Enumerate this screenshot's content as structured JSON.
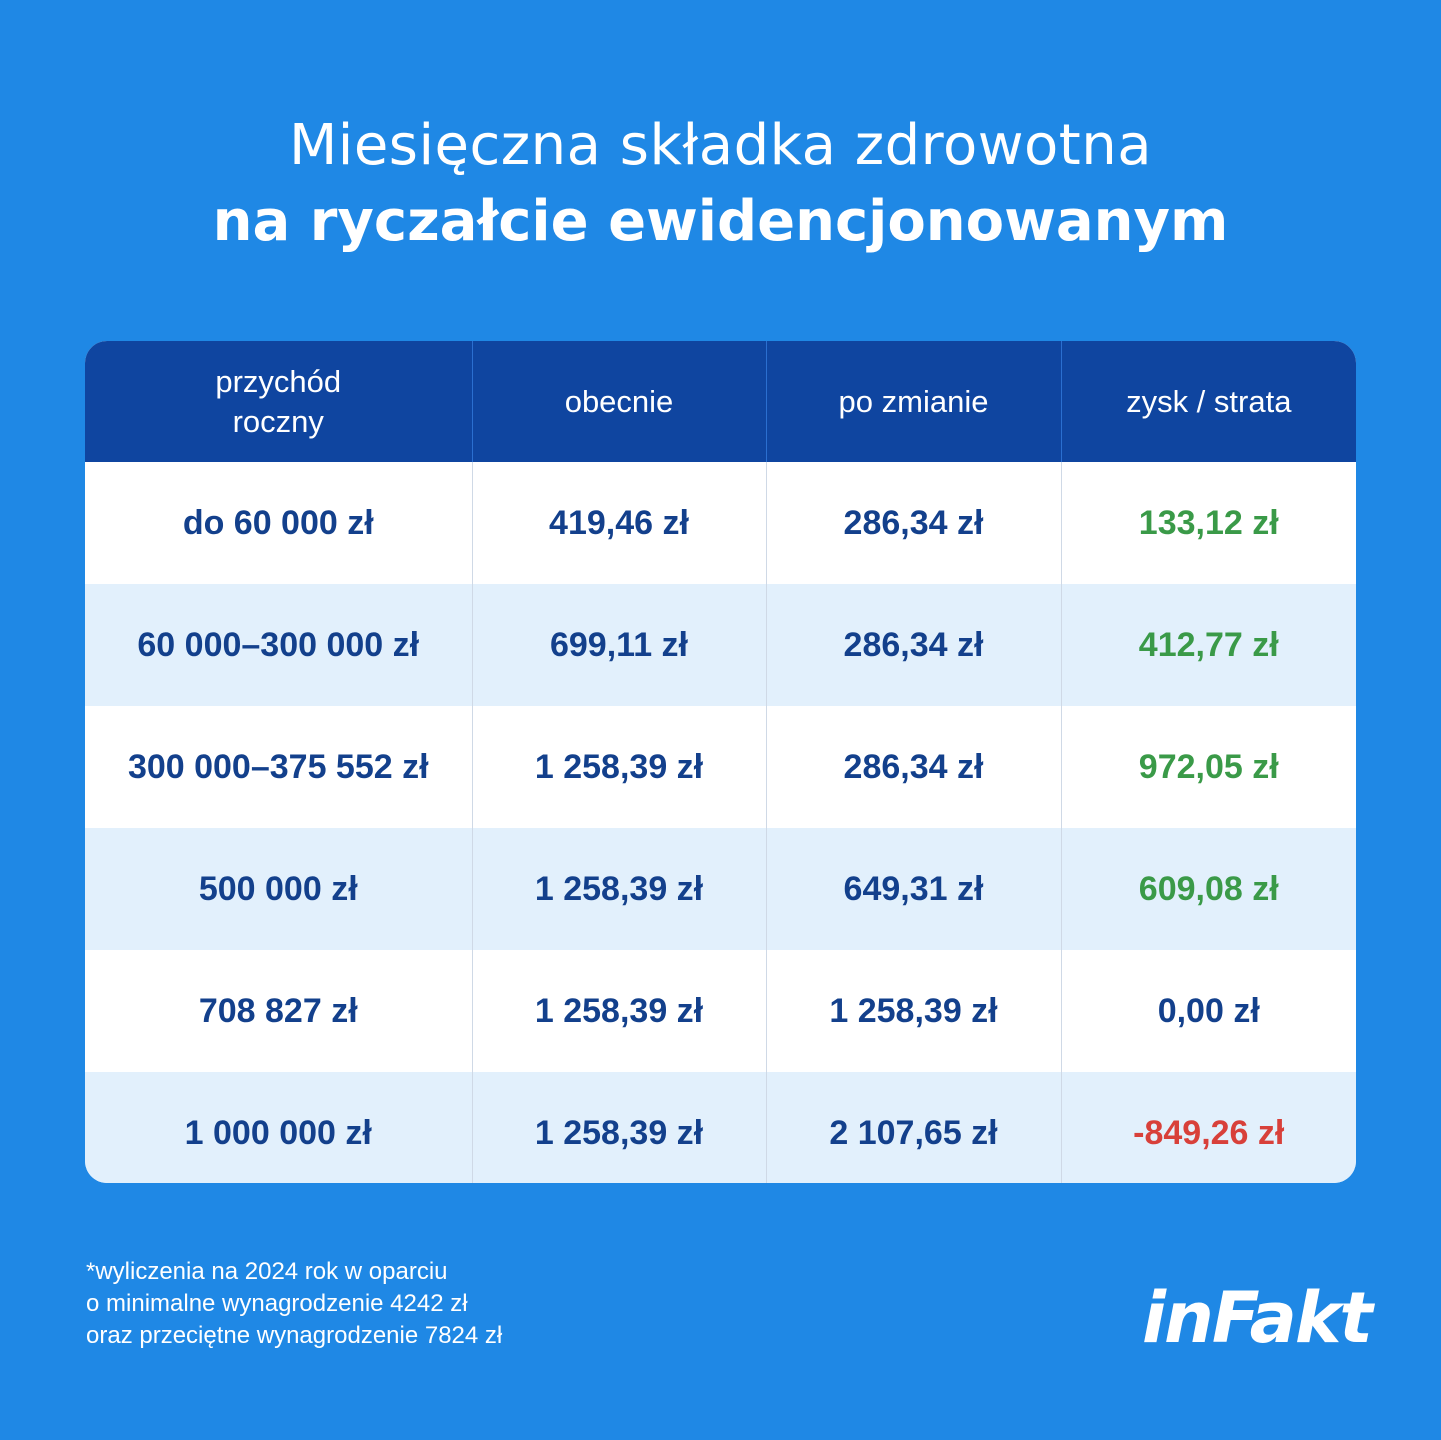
{
  "title": {
    "line1": "Miesięczna składka zdrowotna",
    "line2": "na ryczałcie ewidencjonowanym"
  },
  "table": {
    "headers": [
      "przychód\nroczny",
      "obecnie",
      "po zmianie",
      "zysk / strata"
    ],
    "header_lines": {
      "col1_line1": "przychód",
      "col1_line2": "roczny"
    },
    "rows": [
      {
        "income": "do 60 000 zł",
        "current": "419,46 zł",
        "after": "286,34 zł",
        "diff": "133,12 zł",
        "status": "positive"
      },
      {
        "income": "60 000–300 000 zł",
        "current": "699,11 zł",
        "after": "286,34 zł",
        "diff": "412,77 zł",
        "status": "positive"
      },
      {
        "income": "300 000–375 552 zł",
        "current": "1 258,39 zł",
        "after": "286,34 zł",
        "diff": "972,05 zł",
        "status": "positive"
      },
      {
        "income": "500 000 zł",
        "current": "1 258,39 zł",
        "after": "649,31 zł",
        "diff": "609,08 zł",
        "status": "positive"
      },
      {
        "income": "708 827 zł",
        "current": "1 258,39 zł",
        "after": "1 258,39 zł",
        "diff": "0,00 zł",
        "status": "zero"
      },
      {
        "income": "1 000 000 zł",
        "current": "1 258,39 zł",
        "after": "2 107,65 zł",
        "diff": "-849,26 zł",
        "status": "negative"
      }
    ]
  },
  "footnote": [
    "*wyliczenia na 2024 rok w oparciu",
    "o minimalne wynagrodzenie 4242 zł",
    "oraz przeciętne wynagrodzenie 7824 zł"
  ],
  "logo": "inFakt",
  "colors": {
    "background": "#1f88e5",
    "header": "#0f45a0",
    "positive": "#3a9a48",
    "negative": "#d8403a",
    "text": "#13408c",
    "row_alt": "#e2f0fc"
  }
}
